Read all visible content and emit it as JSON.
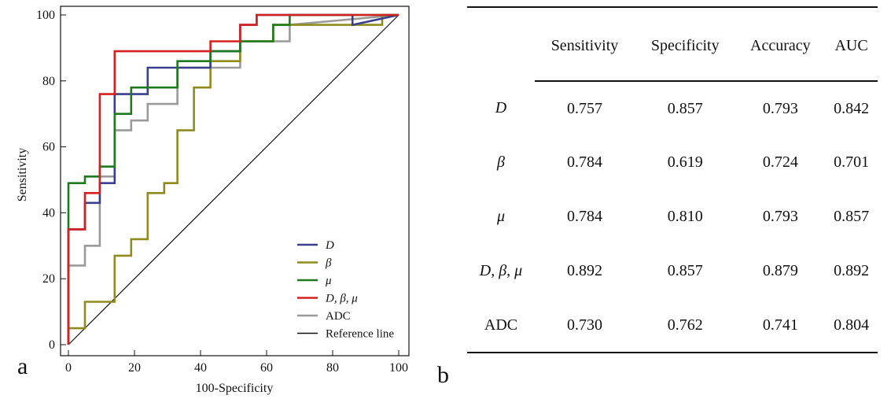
{
  "chart_data": {
    "type": "line",
    "xlabel": "100-Specificity",
    "ylabel": "Sensitivity",
    "xlim": [
      0,
      100
    ],
    "ylim": [
      0,
      100
    ],
    "xticks": [
      0,
      20,
      40,
      60,
      80,
      100
    ],
    "yticks": [
      0,
      20,
      40,
      60,
      80,
      100
    ],
    "legend_position": "bottom-right",
    "series": [
      {
        "name": "D",
        "color": "#3a3f8f",
        "x": [
          0,
          0,
          5,
          5,
          9.5,
          9.5,
          14,
          14,
          24,
          24,
          33,
          33,
          43,
          43,
          52,
          52,
          57,
          57,
          86,
          86,
          100
        ],
        "y": [
          0,
          35,
          35,
          43,
          43,
          49,
          49,
          76,
          76,
          84,
          84,
          84,
          84,
          89,
          89,
          97,
          97,
          100,
          100,
          97,
          100
        ]
      },
      {
        "name": "β",
        "color": "#8f8b1e",
        "x": [
          0,
          0,
          5,
          5,
          14,
          14,
          19,
          19,
          24,
          24,
          29,
          29,
          33,
          33,
          38,
          38,
          43,
          43,
          52,
          52,
          62,
          62,
          90,
          90,
          95,
          95,
          100
        ],
        "y": [
          0,
          5,
          5,
          13,
          13,
          27,
          27,
          32,
          32,
          46,
          46,
          49,
          49,
          65,
          65,
          78,
          78,
          86,
          86,
          92,
          92,
          97,
          97,
          97,
          97,
          100,
          100
        ]
      },
      {
        "name": "μ",
        "color": "#1e7a1e",
        "x": [
          0,
          0,
          5,
          5,
          9.5,
          9.5,
          14,
          14,
          19,
          19,
          33,
          33,
          43,
          43,
          52,
          52,
          62,
          62,
          67,
          67,
          100
        ],
        "y": [
          0,
          49,
          49,
          51,
          51,
          54,
          54,
          70,
          70,
          78,
          78,
          86,
          86,
          89,
          89,
          92,
          92,
          97,
          97,
          100,
          100
        ]
      },
      {
        "name": "D, β, μ",
        "color": "#d42020",
        "x": [
          0,
          0,
          5,
          5,
          9.5,
          9.5,
          14,
          14,
          43,
          43,
          52,
          52,
          57,
          57,
          100
        ],
        "y": [
          0,
          35,
          35,
          46,
          46,
          76,
          76,
          89,
          89,
          92,
          92,
          97,
          97,
          100,
          100
        ]
      },
      {
        "name": "ADC",
        "color": "#9a9a9a",
        "x": [
          0,
          0,
          5,
          5,
          9.5,
          9.5,
          14,
          14,
          19,
          19,
          24,
          24,
          33,
          33,
          52,
          52,
          67,
          67,
          100
        ],
        "y": [
          0,
          24,
          24,
          30,
          30,
          51,
          51,
          65,
          65,
          68,
          68,
          73,
          73,
          84,
          84,
          92,
          92,
          97,
          100
        ]
      },
      {
        "name": "Reference line",
        "color": "#111111",
        "x": [
          0,
          100
        ],
        "y": [
          0,
          100
        ]
      }
    ]
  },
  "labels": {
    "panel_a": "a",
    "panel_b": "b"
  },
  "table": {
    "headers": [
      "",
      "Sensitivity",
      "Specificity",
      "Accuracy",
      "AUC"
    ],
    "rows": [
      {
        "name": "D",
        "italic": true,
        "values": [
          "0.757",
          "0.857",
          "0.793",
          "0.842"
        ]
      },
      {
        "name": "β",
        "italic": true,
        "values": [
          "0.784",
          "0.619",
          "0.724",
          "0.701"
        ]
      },
      {
        "name": "μ",
        "italic": true,
        "values": [
          "0.784",
          "0.810",
          "0.793",
          "0.857"
        ]
      },
      {
        "name": "D, β, μ",
        "italic": true,
        "values": [
          "0.892",
          "0.857",
          "0.879",
          "0.892"
        ]
      },
      {
        "name": "ADC",
        "italic": false,
        "values": [
          "0.730",
          "0.762",
          "0.741",
          "0.804"
        ]
      }
    ]
  }
}
